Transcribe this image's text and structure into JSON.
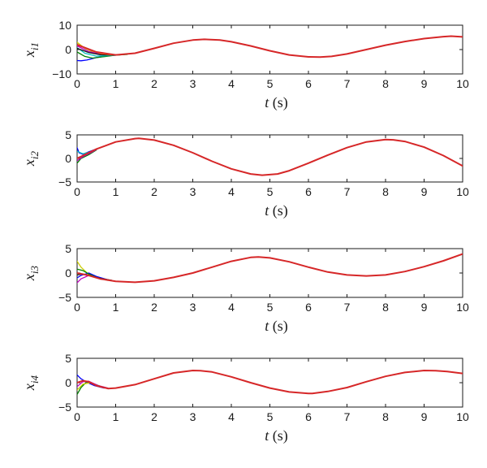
{
  "chart_data": [
    {
      "type": "line",
      "ylabel": {
        "main": "x",
        "sub": "i1"
      },
      "xlabel": {
        "var": "t",
        "unit": "(s)"
      },
      "xlim": [
        0,
        10
      ],
      "ylim": [
        -10,
        10
      ],
      "xticks": [
        "0",
        "1",
        "2",
        "3",
        "4",
        "5",
        "6",
        "7",
        "8",
        "9",
        "10"
      ],
      "yticks": [
        {
          "v": 10,
          "t": "10"
        },
        {
          "v": 0,
          "t": "0"
        },
        {
          "v": -10,
          "t": "−10"
        }
      ],
      "reference": {
        "color": "#d62728",
        "points": [
          [
            0,
            2
          ],
          [
            0.5,
            -1
          ],
          [
            1,
            -2.2
          ],
          [
            1.5,
            -1.5
          ],
          [
            2,
            0.5
          ],
          [
            2.5,
            2.6
          ],
          [
            3,
            3.9
          ],
          [
            3.3,
            4.2
          ],
          [
            3.7,
            3.9
          ],
          [
            4,
            3.2
          ],
          [
            4.5,
            1.5
          ],
          [
            5,
            -0.5
          ],
          [
            5.5,
            -2.2
          ],
          [
            6,
            -3
          ],
          [
            6.3,
            -3.1
          ],
          [
            6.6,
            -2.8
          ],
          [
            7,
            -1.8
          ],
          [
            7.5,
            0
          ],
          [
            8,
            1.8
          ],
          [
            8.5,
            3.3
          ],
          [
            9,
            4.5
          ],
          [
            9.5,
            5.3
          ],
          [
            9.7,
            5.5
          ],
          [
            10,
            5.2
          ]
        ]
      },
      "transients": [
        {
          "color": "#0000ff",
          "points": [
            [
              0,
              -4.5
            ],
            [
              0.1,
              -4.6
            ],
            [
              0.25,
              -4.3
            ],
            [
              0.5,
              -3.3
            ],
            [
              0.8,
              -2.5
            ],
            [
              1.1,
              -2.2
            ]
          ]
        },
        {
          "color": "#008000",
          "points": [
            [
              0,
              -1
            ],
            [
              0.2,
              -2.8
            ],
            [
              0.4,
              -3.5
            ],
            [
              0.7,
              -2.9
            ],
            [
              1.0,
              -2.3
            ],
            [
              1.3,
              -2.0
            ]
          ]
        },
        {
          "color": "#00bfbf",
          "points": [
            [
              0,
              0.8
            ],
            [
              0.2,
              -1.5
            ],
            [
              0.5,
              -2.7
            ],
            [
              0.8,
              -2.5
            ],
            [
              1.1,
              -2.2
            ]
          ]
        },
        {
          "color": "#cccc00",
          "points": [
            [
              0,
              3
            ],
            [
              0.2,
              0.5
            ],
            [
              0.5,
              -1.5
            ],
            [
              0.8,
              -2.2
            ],
            [
              1.1,
              -2.2
            ]
          ]
        },
        {
          "color": "#bf00bf",
          "points": [
            [
              0,
              1.5
            ],
            [
              0.3,
              -0.8
            ],
            [
              0.6,
              -1.9
            ],
            [
              0.9,
              -2.2
            ],
            [
              1.2,
              -2.0
            ]
          ]
        },
        {
          "color": "#1a1a1a",
          "points": [
            [
              0,
              0.5
            ],
            [
              0.3,
              -1.2
            ],
            [
              0.6,
              -2.1
            ],
            [
              0.9,
              -2.3
            ],
            [
              1.2,
              -2.0
            ]
          ]
        },
        {
          "color": "#ff7f0e",
          "points": [
            [
              0,
              2.2
            ],
            [
              0.3,
              0
            ],
            [
              0.6,
              -1.6
            ],
            [
              0.9,
              -2.2
            ],
            [
              1.2,
              -2.0
            ]
          ]
        }
      ]
    },
    {
      "type": "line",
      "ylabel": {
        "main": "x",
        "sub": "i2"
      },
      "xlabel": {
        "var": "t",
        "unit": "(s)"
      },
      "xlim": [
        0,
        10
      ],
      "ylim": [
        -5,
        5
      ],
      "xticks": [
        "0",
        "1",
        "2",
        "3",
        "4",
        "5",
        "6",
        "7",
        "8",
        "9",
        "10"
      ],
      "yticks": [
        {
          "v": 5,
          "t": "5"
        },
        {
          "v": 0,
          "t": "0"
        },
        {
          "v": -5,
          "t": "−5"
        }
      ],
      "reference": {
        "color": "#d62728",
        "points": [
          [
            0,
            0
          ],
          [
            0.5,
            2
          ],
          [
            1,
            3.5
          ],
          [
            1.5,
            4.2
          ],
          [
            1.6,
            4.25
          ],
          [
            2,
            3.9
          ],
          [
            2.5,
            2.8
          ],
          [
            3,
            1.2
          ],
          [
            3.5,
            -0.6
          ],
          [
            4,
            -2.2
          ],
          [
            4.5,
            -3.3
          ],
          [
            4.8,
            -3.55
          ],
          [
            5.2,
            -3.3
          ],
          [
            5.5,
            -2.6
          ],
          [
            6,
            -1
          ],
          [
            6.5,
            0.7
          ],
          [
            7,
            2.3
          ],
          [
            7.5,
            3.5
          ],
          [
            8,
            4
          ],
          [
            8.2,
            3.95
          ],
          [
            8.5,
            3.6
          ],
          [
            9,
            2.4
          ],
          [
            9.5,
            0.6
          ],
          [
            10,
            -1.6
          ]
        ]
      },
      "transients": [
        {
          "color": "#0000ff",
          "points": [
            [
              0,
              2.3
            ],
            [
              0.05,
              1.2
            ],
            [
              0.15,
              0.9
            ],
            [
              0.3,
              1.4
            ],
            [
              0.5,
              2.0
            ]
          ]
        },
        {
          "color": "#008000",
          "points": [
            [
              0,
              -1
            ],
            [
              0.1,
              0
            ],
            [
              0.3,
              0.8
            ],
            [
              0.5,
              1.8
            ]
          ]
        },
        {
          "color": "#bf00bf",
          "points": [
            [
              0,
              -0.5
            ],
            [
              0.15,
              0.4
            ],
            [
              0.35,
              1.2
            ],
            [
              0.5,
              1.9
            ]
          ]
        },
        {
          "color": "#00bfbf",
          "points": [
            [
              0,
              1.5
            ],
            [
              0.15,
              1
            ],
            [
              0.35,
              1.4
            ],
            [
              0.5,
              2.0
            ]
          ]
        }
      ]
    },
    {
      "type": "line",
      "ylabel": {
        "main": "x",
        "sub": "i3"
      },
      "xlabel": {
        "var": "t",
        "unit": "(s)"
      },
      "xlim": [
        0,
        10
      ],
      "ylim": [
        -5,
        5
      ],
      "xticks": [
        "0",
        "1",
        "2",
        "3",
        "4",
        "5",
        "6",
        "7",
        "8",
        "9",
        "10"
      ],
      "yticks": [
        {
          "v": 5,
          "t": "5"
        },
        {
          "v": 0,
          "t": "0"
        },
        {
          "v": -5,
          "t": "−5"
        }
      ],
      "reference": {
        "color": "#d62728",
        "points": [
          [
            0,
            0
          ],
          [
            0.3,
            -0.5
          ],
          [
            0.6,
            -1.2
          ],
          [
            1,
            -1.7
          ],
          [
            1.5,
            -1.9
          ],
          [
            2,
            -1.6
          ],
          [
            2.5,
            -0.9
          ],
          [
            3,
            0
          ],
          [
            3.5,
            1.2
          ],
          [
            4,
            2.4
          ],
          [
            4.5,
            3.2
          ],
          [
            4.7,
            3.3
          ],
          [
            5,
            3.1
          ],
          [
            5.5,
            2.3
          ],
          [
            6,
            1.2
          ],
          [
            6.5,
            0.2
          ],
          [
            7,
            -0.4
          ],
          [
            7.5,
            -0.6
          ],
          [
            8,
            -0.4
          ],
          [
            8.5,
            0.3
          ],
          [
            9,
            1.3
          ],
          [
            9.5,
            2.5
          ],
          [
            10,
            3.9
          ]
        ]
      },
      "transients": [
        {
          "color": "#cccc00",
          "points": [
            [
              0,
              2.4
            ],
            [
              0.1,
              1.2
            ],
            [
              0.3,
              -0.3
            ],
            [
              0.5,
              -1.0
            ],
            [
              0.8,
              -1.5
            ]
          ]
        },
        {
          "color": "#bf00bf",
          "points": [
            [
              0,
              -2
            ],
            [
              0.1,
              -1.2
            ],
            [
              0.3,
              -0.5
            ],
            [
              0.5,
              -0.8
            ],
            [
              0.8,
              -1.4
            ]
          ]
        },
        {
          "color": "#0000ff",
          "points": [
            [
              0,
              -1
            ],
            [
              0.1,
              -0.5
            ],
            [
              0.3,
              0
            ],
            [
              0.5,
              -0.7
            ],
            [
              0.8,
              -1.4
            ]
          ]
        },
        {
          "color": "#008000",
          "points": [
            [
              0,
              0.8
            ],
            [
              0.15,
              0.5
            ],
            [
              0.3,
              -0.2
            ],
            [
              0.5,
              -0.9
            ],
            [
              0.8,
              -1.5
            ]
          ]
        },
        {
          "color": "#1a1a1a",
          "points": [
            [
              0,
              -0.4
            ],
            [
              0.15,
              -0.2
            ],
            [
              0.35,
              -0.6
            ],
            [
              0.6,
              -1.1
            ],
            [
              0.9,
              -1.5
            ]
          ]
        }
      ]
    },
    {
      "type": "line",
      "ylabel": {
        "main": "x",
        "sub": "i4"
      },
      "xlabel": {
        "var": "t",
        "unit": "(s)"
      },
      "xlim": [
        0,
        10
      ],
      "ylim": [
        -5,
        5
      ],
      "xticks": [
        "0",
        "1",
        "2",
        "3",
        "4",
        "5",
        "6",
        "7",
        "8",
        "9",
        "10"
      ],
      "yticks": [
        {
          "v": 5,
          "t": "5"
        },
        {
          "v": 0,
          "t": "0"
        },
        {
          "v": -5,
          "t": "−5"
        }
      ],
      "reference": {
        "color": "#d62728",
        "points": [
          [
            0,
            0
          ],
          [
            0.15,
            0.4
          ],
          [
            0.3,
            0.2
          ],
          [
            0.5,
            -0.6
          ],
          [
            0.8,
            -1.2
          ],
          [
            1,
            -1.1
          ],
          [
            1.5,
            -0.4
          ],
          [
            2,
            0.8
          ],
          [
            2.5,
            2
          ],
          [
            3,
            2.5
          ],
          [
            3.2,
            2.45
          ],
          [
            3.5,
            2.2
          ],
          [
            4,
            1.2
          ],
          [
            4.5,
            0
          ],
          [
            5,
            -1.1
          ],
          [
            5.5,
            -1.9
          ],
          [
            6,
            -2.2
          ],
          [
            6.1,
            -2.2
          ],
          [
            6.5,
            -1.8
          ],
          [
            7,
            -1
          ],
          [
            7.5,
            0.2
          ],
          [
            8,
            1.3
          ],
          [
            8.5,
            2.1
          ],
          [
            9,
            2.5
          ],
          [
            9.3,
            2.45
          ],
          [
            9.6,
            2.3
          ],
          [
            10,
            1.9
          ]
        ]
      },
      "transients": [
        {
          "color": "#0000ff",
          "points": [
            [
              0,
              1.6
            ],
            [
              0.1,
              0.8
            ],
            [
              0.25,
              0.1
            ],
            [
              0.45,
              -0.6
            ],
            [
              0.7,
              -1.1
            ]
          ]
        },
        {
          "color": "#008000",
          "points": [
            [
              0,
              -2.4
            ],
            [
              0.1,
              -1
            ],
            [
              0.25,
              0.2
            ],
            [
              0.45,
              -0.3
            ],
            [
              0.7,
              -1.0
            ]
          ]
        },
        {
          "color": "#cccc00",
          "points": [
            [
              0,
              -1.5
            ],
            [
              0.15,
              -0.3
            ],
            [
              0.35,
              0
            ],
            [
              0.55,
              -0.7
            ],
            [
              0.8,
              -1.1
            ]
          ]
        },
        {
          "color": "#bf00bf",
          "points": [
            [
              0,
              -0.8
            ],
            [
              0.15,
              0.2
            ],
            [
              0.3,
              0.3
            ],
            [
              0.55,
              -0.6
            ],
            [
              0.8,
              -1.1
            ]
          ]
        }
      ]
    }
  ]
}
